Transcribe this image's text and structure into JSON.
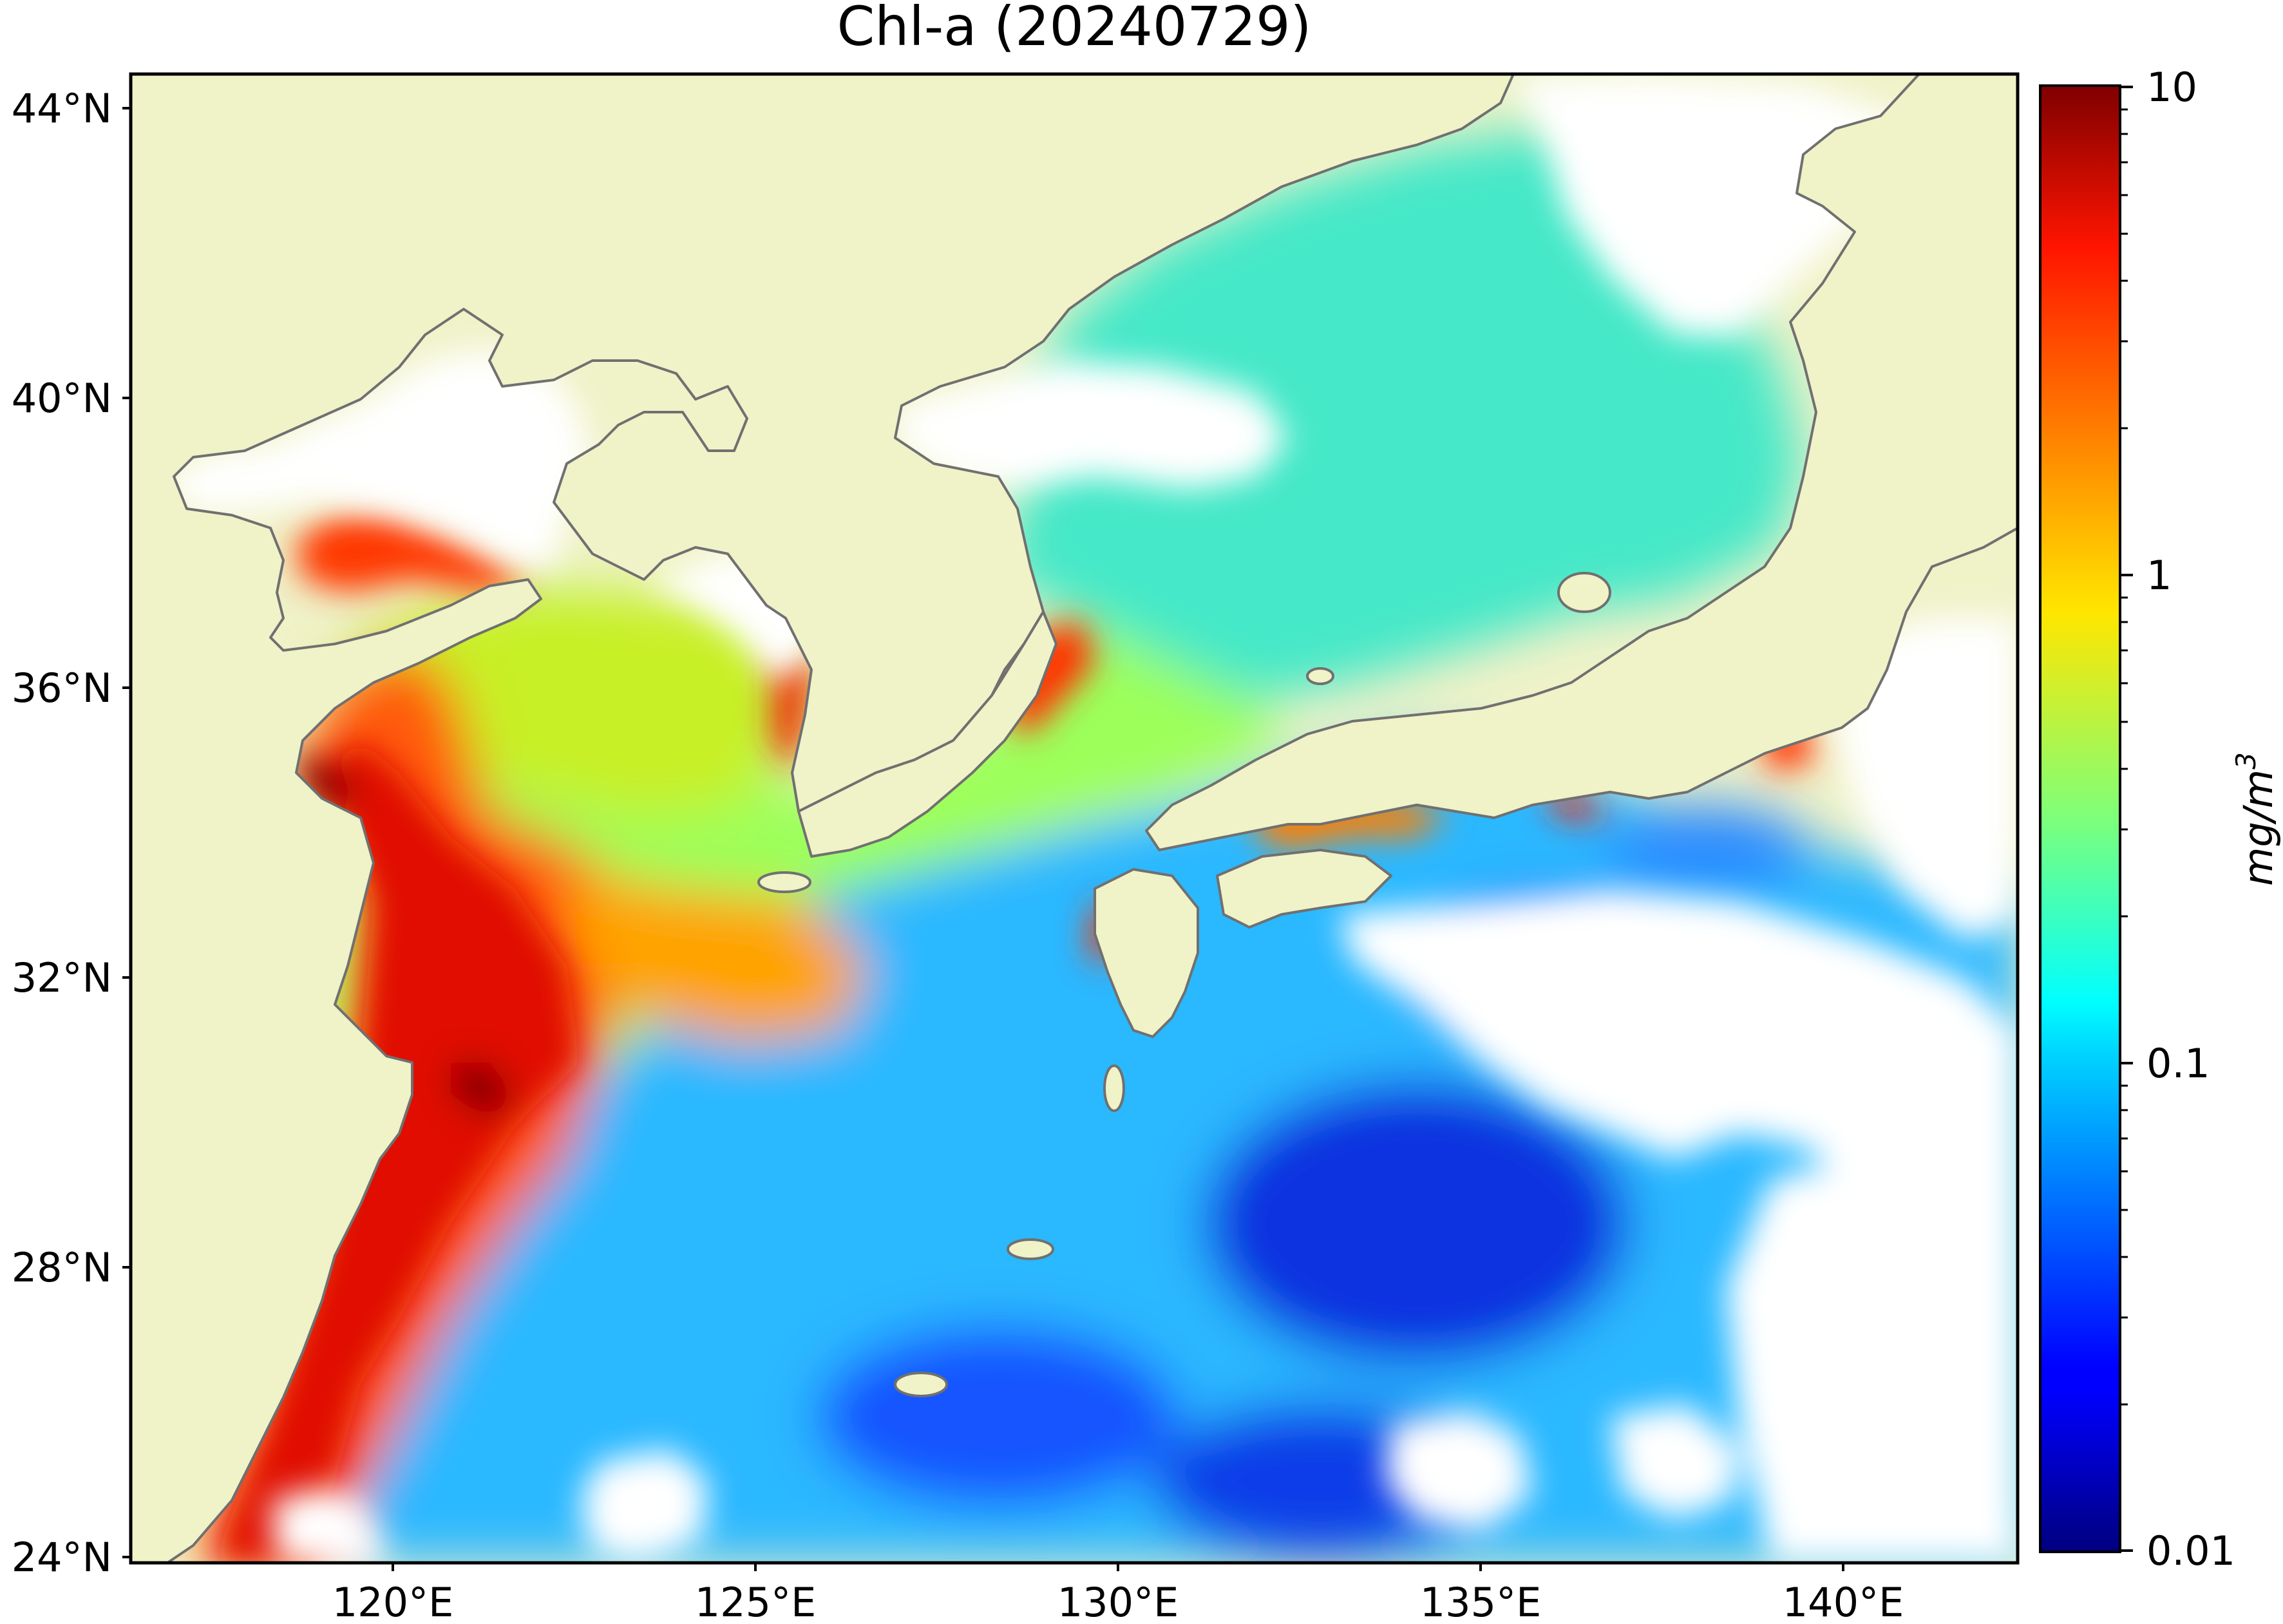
{
  "title": "Chl-a (20240729)",
  "map": {
    "land_color": "#f0f2c8",
    "no_data_color": "#ffffff",
    "coastline_color": "#707070",
    "lon_ticks": [
      "120°E",
      "125°E",
      "130°E",
      "135°E",
      "140°E"
    ],
    "lat_ticks": [
      "44°N",
      "40°N",
      "36°N",
      "32°N",
      "28°N",
      "24°N"
    ]
  },
  "colorbar": {
    "scale": "log",
    "colormap": "jet",
    "tick_labels": [
      "10",
      "1",
      "0.1",
      "0.01"
    ],
    "label": "mg/m",
    "label_superscript": "3"
  }
}
